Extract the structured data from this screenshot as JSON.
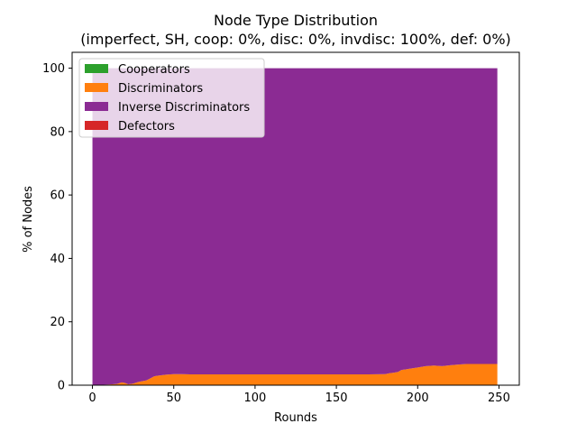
{
  "chart_data": {
    "type": "area",
    "title_line1": "Node Type Distribution",
    "title_line2": "(imperfect, SH, coop: 0%, disc: 0%, invdisc: 100%, def: 0%)",
    "xlabel": "Rounds",
    "ylabel": "% of Nodes",
    "xlim": [
      -12.5,
      262.5
    ],
    "ylim": [
      0,
      105
    ],
    "xticks": [
      0,
      50,
      100,
      150,
      200,
      250
    ],
    "yticks": [
      0,
      20,
      40,
      60,
      80,
      100
    ],
    "legend_position": "top-left",
    "stacked": true,
    "x": [
      0,
      5,
      10,
      15,
      18,
      20,
      22,
      25,
      28,
      30,
      33,
      35,
      38,
      40,
      45,
      50,
      55,
      60,
      70,
      80,
      100,
      120,
      150,
      170,
      180,
      183,
      185,
      188,
      190,
      193,
      195,
      200,
      205,
      210,
      215,
      220,
      225,
      230,
      240,
      249
    ],
    "series": [
      {
        "name": "Cooperators",
        "color": "#2ca02c",
        "values": [
          0,
          0,
          0,
          0,
          0,
          0,
          0,
          0,
          0,
          0,
          0,
          0,
          0,
          0,
          0,
          0,
          0,
          0,
          0,
          0,
          0,
          0,
          0,
          0,
          0,
          0,
          0,
          0,
          0,
          0,
          0,
          0,
          0,
          0,
          0,
          0,
          0,
          0,
          0,
          0
        ]
      },
      {
        "name": "Discriminators",
        "color": "#ff7f0e",
        "values": [
          0,
          0.1,
          0.2,
          0.4,
          0.9,
          0.7,
          0.3,
          0.5,
          1.0,
          1.2,
          1.5,
          2.0,
          2.8,
          3.0,
          3.3,
          3.5,
          3.5,
          3.4,
          3.4,
          3.4,
          3.4,
          3.4,
          3.4,
          3.4,
          3.5,
          3.8,
          3.9,
          4.2,
          4.8,
          5.0,
          5.2,
          5.6,
          6.0,
          6.2,
          6.0,
          6.3,
          6.5,
          6.7,
          6.7,
          6.7
        ]
      },
      {
        "name": "Inverse Discriminators",
        "color": "#8b2b93",
        "values": [
          100,
          99.9,
          99.8,
          99.6,
          99.1,
          99.3,
          99.7,
          99.5,
          99.0,
          98.8,
          98.5,
          98.0,
          97.2,
          97.0,
          96.7,
          96.5,
          96.5,
          96.6,
          96.6,
          96.6,
          96.6,
          96.6,
          96.6,
          96.6,
          96.5,
          96.2,
          96.1,
          95.8,
          95.2,
          95.0,
          94.8,
          94.4,
          94.0,
          93.8,
          94.0,
          93.7,
          93.5,
          93.3,
          93.3,
          93.3
        ]
      },
      {
        "name": "Defectors",
        "color": "#d62728",
        "values": [
          0,
          0,
          0,
          0,
          0,
          0,
          0,
          0,
          0,
          0,
          0,
          0,
          0,
          0,
          0,
          0,
          0,
          0,
          0,
          0,
          0,
          0,
          0,
          0,
          0,
          0,
          0,
          0,
          0,
          0,
          0,
          0,
          0,
          0,
          0,
          0,
          0,
          0,
          0,
          0
        ]
      }
    ]
  }
}
